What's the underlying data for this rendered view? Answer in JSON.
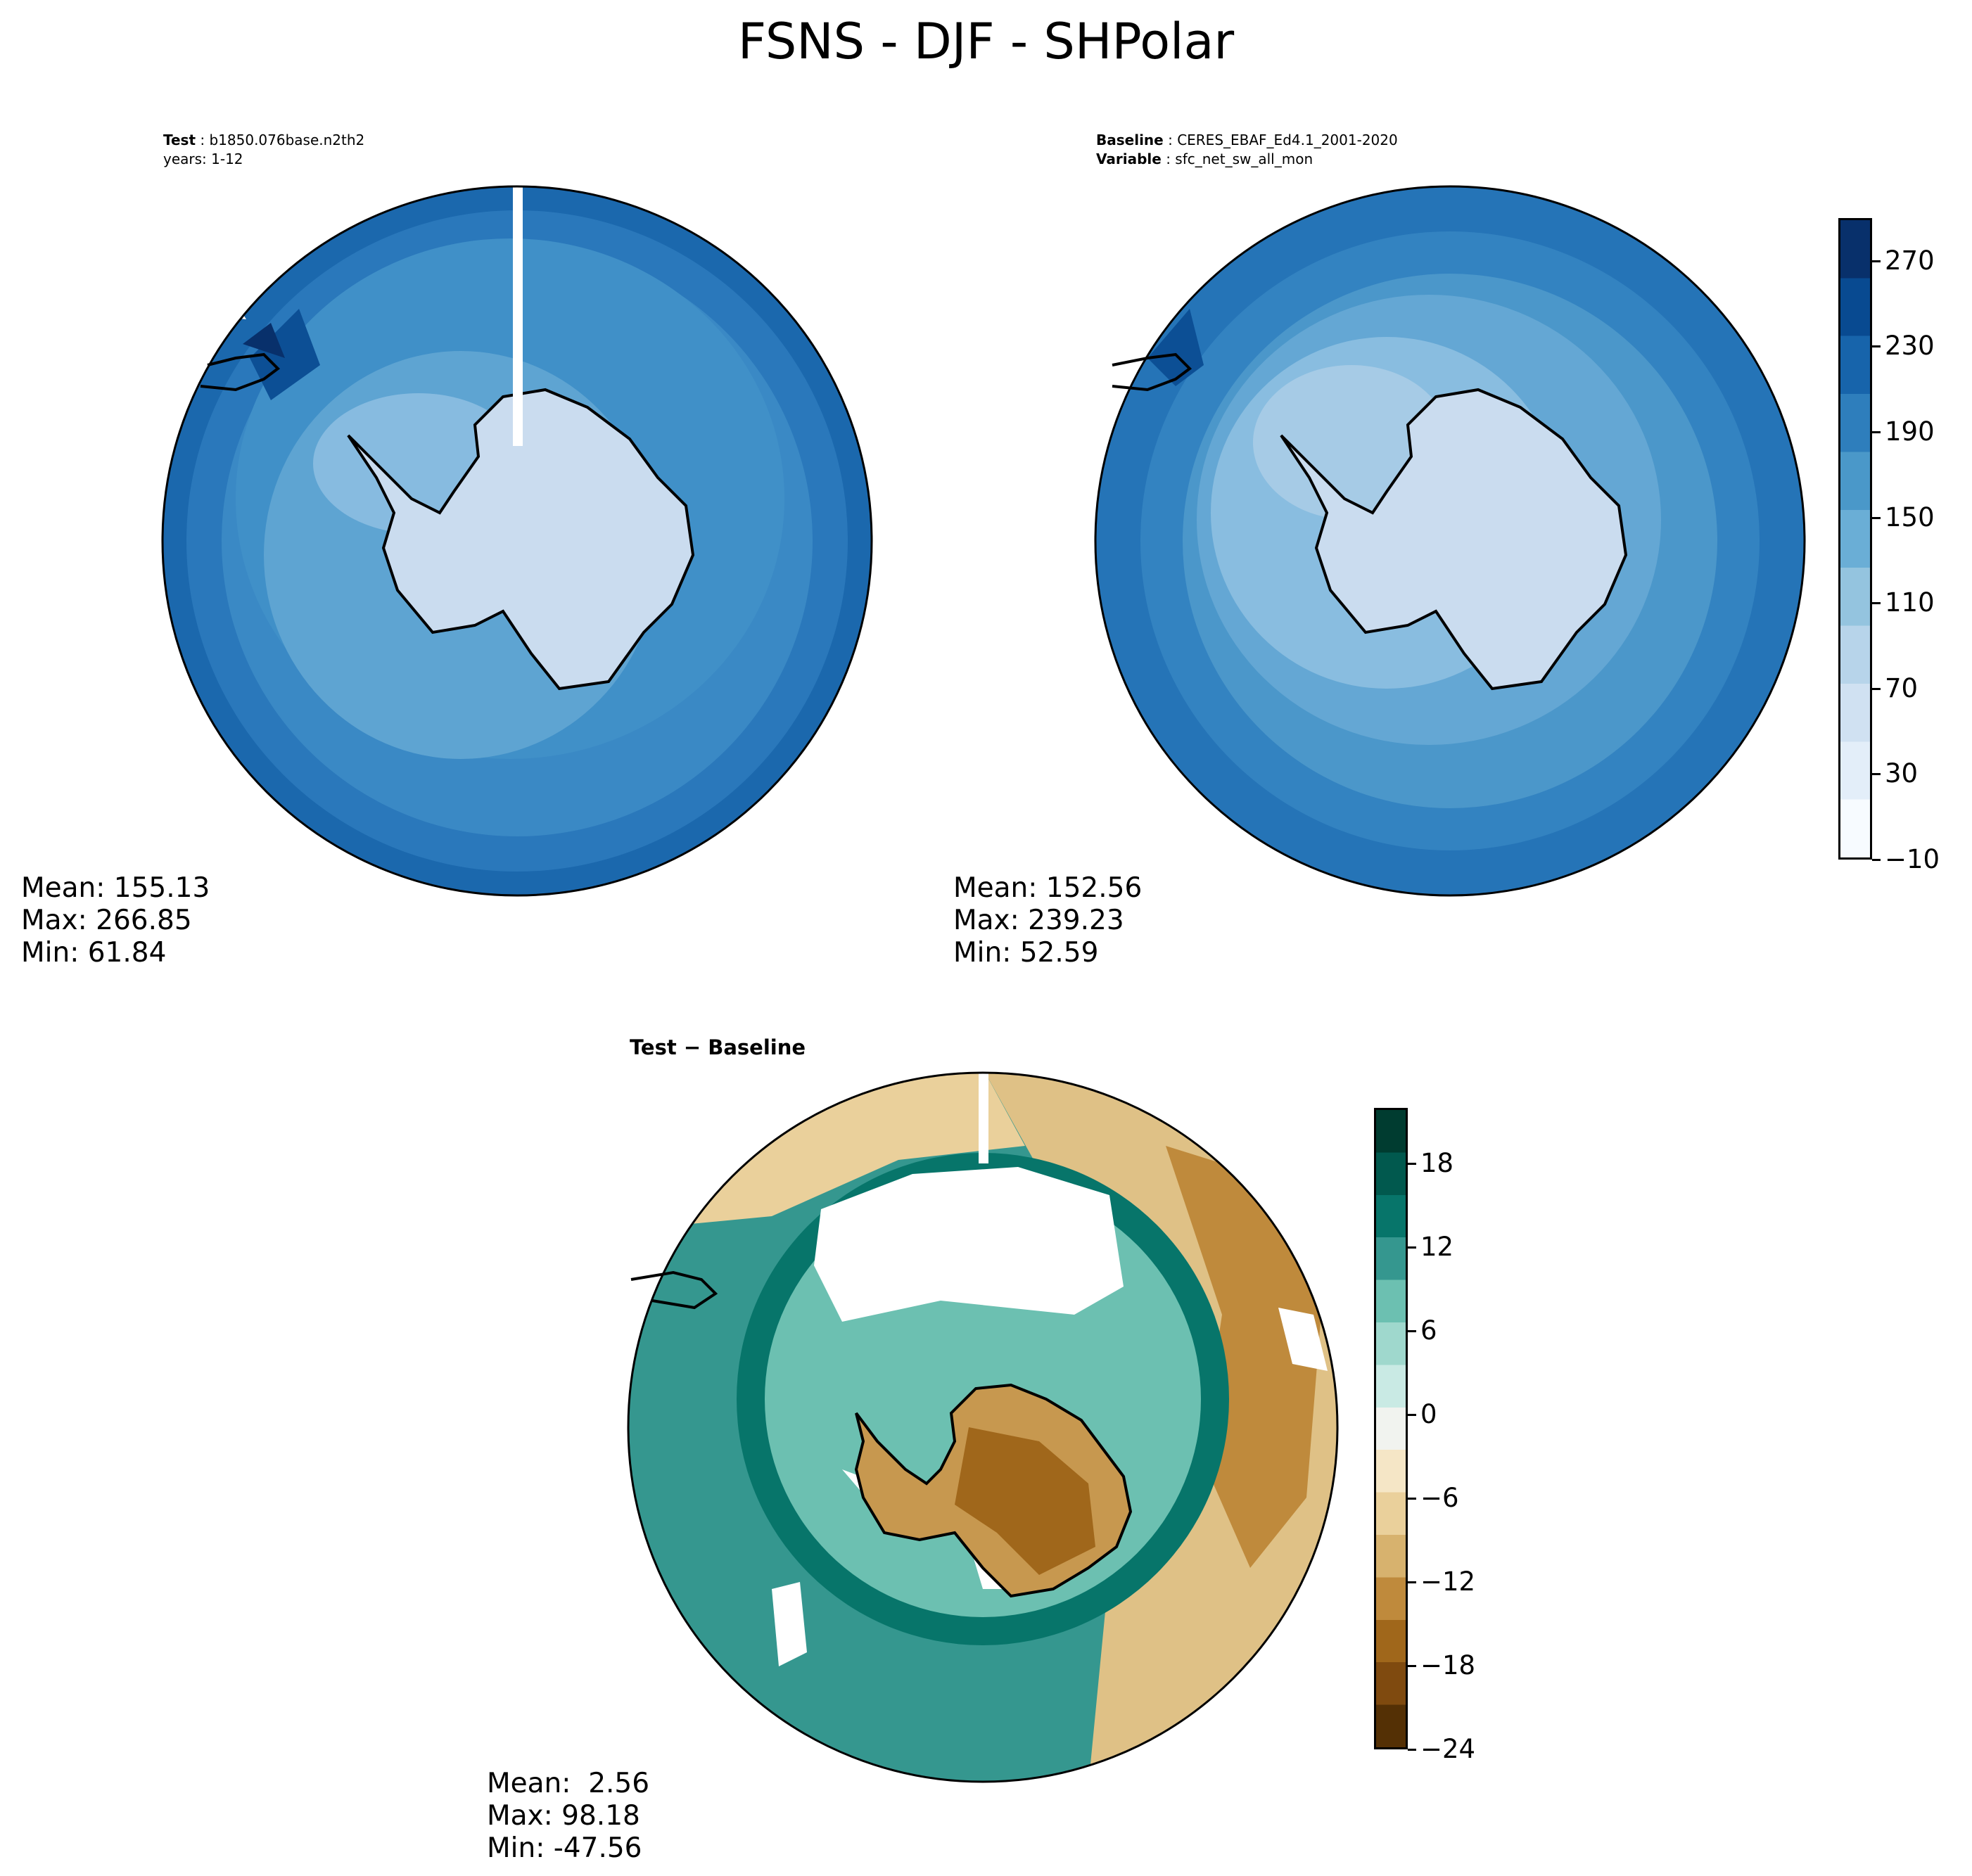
{
  "title": "FSNS - DJF - SHPolar",
  "test_panel": {
    "label_bold": "Test",
    "label_value": "b1850.076base.n2th2",
    "years": "years: 1-12",
    "stats": {
      "mean": "Mean: 155.13",
      "max": "Max: 266.85",
      "min": "Min: 61.84"
    }
  },
  "baseline_panel": {
    "label_bold": "Baseline",
    "label_value": "CERES_EBAF_Ed4.1_2001-2020",
    "variable_bold": "Variable",
    "variable_value": "sfc_net_sw_all_mon",
    "stats": {
      "mean": "Mean: 152.56",
      "max": "Max: 239.23",
      "min": "Min: 52.59"
    }
  },
  "diff_panel": {
    "title": "Test − Baseline",
    "stats": {
      "mean": "Mean:  2.56",
      "max": "Max: 98.18",
      "min": "Min: -47.56"
    }
  },
  "colorbar_main": {
    "ticks": [
      "270",
      "230",
      "190",
      "150",
      "110",
      "70",
      "30",
      "−10"
    ],
    "range": [
      -10,
      290
    ],
    "colors": [
      "#f7fbff",
      "#e3eef9",
      "#d0e1f2",
      "#b7d4ea",
      "#94c4df",
      "#6aaed6",
      "#4a98c9",
      "#2e7ebc",
      "#1764ab",
      "#084a91",
      "#08306b"
    ]
  },
  "colorbar_diff": {
    "ticks": [
      "18",
      "12",
      "6",
      "0",
      "−6",
      "−12",
      "−18",
      "−24"
    ],
    "range": [
      -24,
      22
    ],
    "colors": [
      "#543005",
      "#7f4a0f",
      "#a0671b",
      "#bf8a3c",
      "#d7b26e",
      "#ead09b",
      "#f5e6c6",
      "#f1f3ef",
      "#c9eae4",
      "#9fd8cd",
      "#6cc0b1",
      "#35978f",
      "#07756a",
      "#01594e",
      "#003c30"
    ]
  }
}
